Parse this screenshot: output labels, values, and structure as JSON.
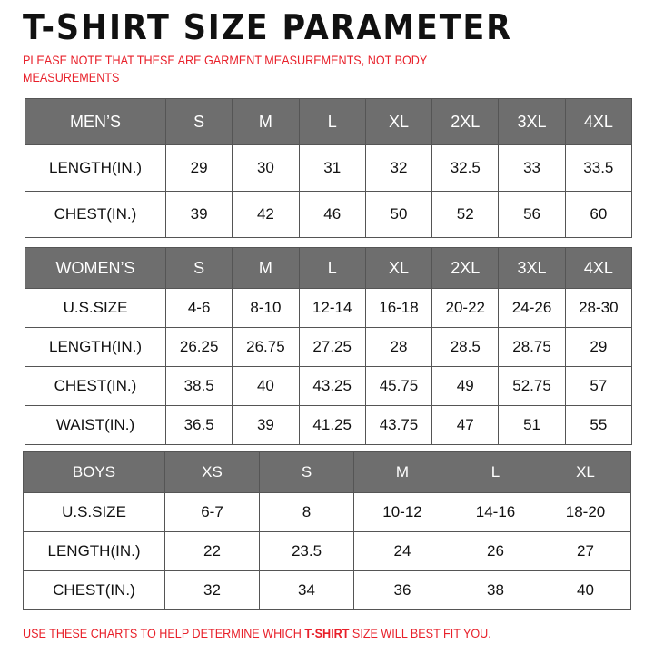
{
  "title": "T-SHIRT SIZE PARAMETER",
  "note": "PLEASE NOTE THAT THESE ARE GARMENT MEASUREMENTS, NOT BODY MEASUREMENTS",
  "footer": {
    "before": "USE THESE CHARTS TO HELP DETERMINE WHICH ",
    "bold": "T-SHIRT",
    "after": " SIZE WILL BEST FIT YOU."
  },
  "colors": {
    "header_bg": "#6e6e6e",
    "note_red": "#e8202a"
  },
  "tables": [
    {
      "id": "men",
      "header": [
        "MEN’S",
        "S",
        "M",
        "L",
        "XL",
        "2XL",
        "3XL",
        "4XL"
      ],
      "rows": [
        [
          "LENGTH(IN.)",
          "29",
          "30",
          "31",
          "32",
          "32.5",
          "33",
          "33.5"
        ],
        [
          "CHEST(IN.)",
          "39",
          "42",
          "46",
          "50",
          "52",
          "56",
          "60"
        ]
      ]
    },
    {
      "id": "women",
      "header": [
        "WOMEN’S",
        "S",
        "M",
        "L",
        "XL",
        "2XL",
        "3XL",
        "4XL"
      ],
      "rows": [
        [
          "U.S.SIZE",
          "4-6",
          "8-10",
          "12-14",
          "16-18",
          "20-22",
          "24-26",
          "28-30"
        ],
        [
          "LENGTH(IN.)",
          "26.25",
          "26.75",
          "27.25",
          "28",
          "28.5",
          "28.75",
          "29"
        ],
        [
          "CHEST(IN.)",
          "38.5",
          "40",
          "43.25",
          "45.75",
          "49",
          "52.75",
          "57"
        ],
        [
          "WAIST(IN.)",
          "36.5",
          "39",
          "41.25",
          "43.75",
          "47",
          "51",
          "55"
        ]
      ]
    },
    {
      "id": "boys",
      "header": [
        "BOYS",
        "XS",
        "S",
        "M",
        "L",
        "XL"
      ],
      "rows": [
        [
          "U.S.SIZE",
          "6-7",
          "8",
          "10-12",
          "14-16",
          "18-20"
        ],
        [
          "LENGTH(IN.)",
          "22",
          "23.5",
          "24",
          "26",
          "27"
        ],
        [
          "CHEST(IN.)",
          "32",
          "34",
          "36",
          "38",
          "40"
        ]
      ]
    }
  ]
}
